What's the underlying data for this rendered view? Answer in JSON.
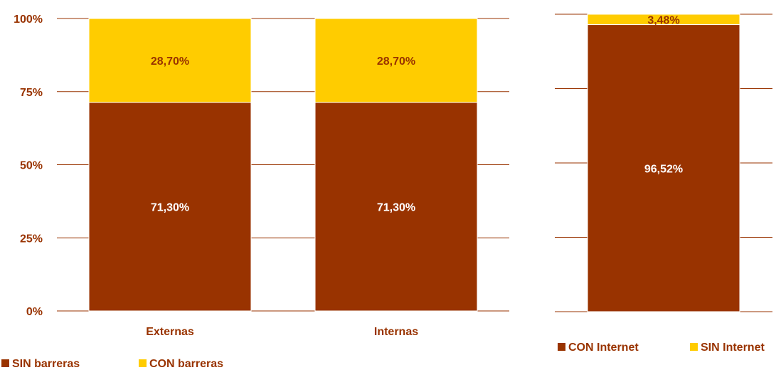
{
  "colors": {
    "sin_barreras": "#993300",
    "con_barreras": "#ffcc00",
    "con_internet": "#993300",
    "sin_internet": "#ffcc00",
    "gridline": "#993300",
    "text_dark": "#993300",
    "text_light": "#ffffff"
  },
  "chart_data": [
    {
      "type": "bar",
      "stacked": true,
      "categories": [
        "Externas",
        "Internas"
      ],
      "series": [
        {
          "name": "SIN barreras",
          "values": [
            71.3,
            71.3
          ],
          "labels": [
            "71,30%",
            "71,30%"
          ]
        },
        {
          "name": "CON barreras",
          "values": [
            28.7,
            28.7
          ],
          "labels": [
            "28,70%",
            "28,70%"
          ]
        }
      ],
      "ylim": [
        0,
        100
      ],
      "yticks": [
        "0%",
        "25%",
        "50%",
        "75%",
        "100%"
      ],
      "grid": true,
      "legend": "bottom-left"
    },
    {
      "type": "bar",
      "stacked": true,
      "categories": [
        ""
      ],
      "series": [
        {
          "name": "CON Internet",
          "values": [
            96.52
          ],
          "labels": [
            "96,52%"
          ]
        },
        {
          "name": "SIN Internet",
          "values": [
            3.48
          ],
          "labels": [
            "3,48%"
          ]
        }
      ],
      "ylim": [
        0,
        100
      ],
      "grid": true,
      "legend": "bottom-right"
    }
  ]
}
